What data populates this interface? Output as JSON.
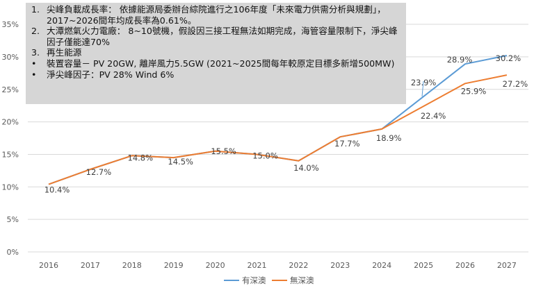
{
  "chart_data": {
    "type": "line",
    "x": [
      "2016",
      "2017",
      "2018",
      "2019",
      "2020",
      "2021",
      "2022",
      "2023",
      "2024",
      "2025",
      "2026",
      "2027"
    ],
    "ylim": [
      0,
      35
    ],
    "yticks": [
      0,
      5,
      10,
      15,
      20,
      25,
      30,
      35
    ],
    "ytick_labels": [
      "0%",
      "5%",
      "10%",
      "15%",
      "20%",
      "25%",
      "30%",
      "35%"
    ],
    "grid": true,
    "legend_position": "bottom",
    "series": [
      {
        "name": "有深澳",
        "color": "#5b9bd5",
        "values": [
          10.4,
          12.7,
          14.8,
          14.5,
          15.5,
          15.0,
          14.0,
          17.7,
          18.9,
          23.9,
          28.9,
          30.2
        ],
        "labels": {
          "9": "23.9%",
          "10": "28.9%",
          "11": "30.2%"
        }
      },
      {
        "name": "無深澳",
        "color": "#ed7d31",
        "values": [
          10.4,
          12.7,
          14.8,
          14.5,
          15.5,
          15.0,
          14.0,
          17.7,
          18.9,
          22.4,
          25.9,
          27.2
        ],
        "labels": {
          "0": "10.4%",
          "1": "12.7%",
          "2": "14.8%",
          "3": "14.5%",
          "4": "15.5%",
          "5": "15.0%",
          "6": "14.0%",
          "7": "17.7%",
          "8": "18.9%",
          "9": "22.4%",
          "10": "25.9%",
          "11": "27.2%"
        }
      }
    ]
  },
  "notes": [
    {
      "marker": "1.",
      "text": "尖峰負載成長率： 依據能源局委辦台綜院進行之106年度「未來電力供需分析與規劃」，2017~2026間年均成長率為0.61%。"
    },
    {
      "marker": "2.",
      "text": "大潭燃氣火力電廠： 8~10號機，假設因三接工程無法如期完成，海管容量限制下，淨尖峰因子僅能達70%"
    },
    {
      "marker": "3.",
      "text": "再生能源"
    },
    {
      "marker": "•",
      "text": "裝置容量－ PV 20GW, 離岸風力5.5GW (2021~2025間每年較原定目標多新增500MW)"
    },
    {
      "marker": "•",
      "text": "淨尖峰因子：PV 28%  Wind 6%"
    }
  ]
}
